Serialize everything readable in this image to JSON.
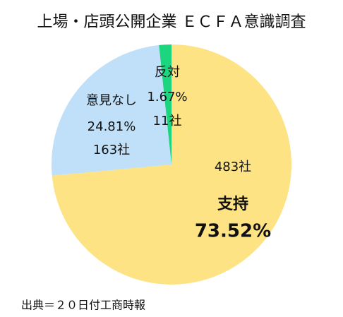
{
  "chart_data": {
    "type": "pie",
    "title": "上場・店頭公開企業 ＥＣＦＡ意識調査",
    "categories": [
      "支持",
      "意見なし",
      "反対"
    ],
    "values": [
      73.52,
      24.81,
      1.67
    ],
    "value_labels": [
      "73.52%",
      "24.81%",
      "1.67%"
    ],
    "count_labels": [
      "483社",
      "163社",
      "11社"
    ],
    "colors": [
      "#fde384",
      "#bfe0f8",
      "#1bd67f"
    ],
    "source": "出典＝２０日付工商時報"
  }
}
